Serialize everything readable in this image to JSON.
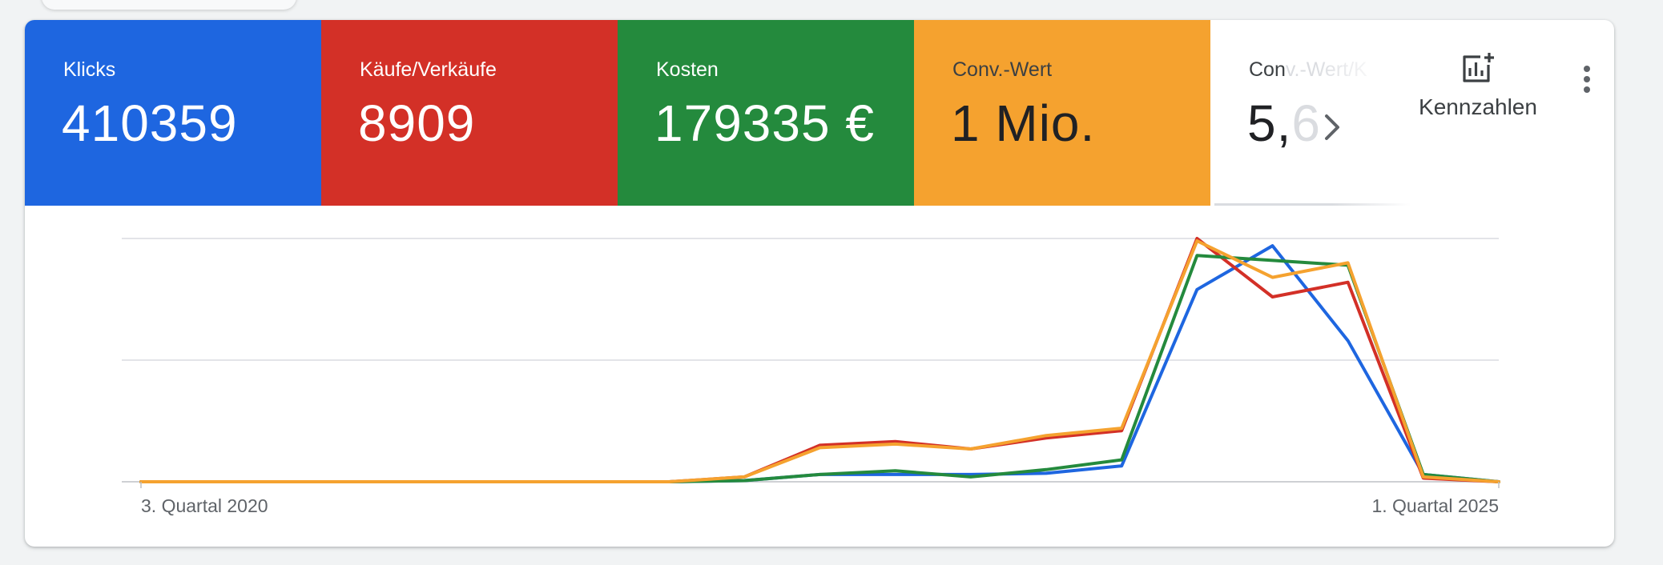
{
  "scorecards": [
    {
      "label": "Klicks",
      "value": "410359",
      "color": "#1e66e0"
    },
    {
      "label": "Käufe/Verkäufe",
      "value": "8909",
      "color": "#d33027"
    },
    {
      "label": "Kosten",
      "value": "179335 €",
      "color": "#248a3d"
    },
    {
      "label": "Conv.-Wert",
      "value": "1 Mio.",
      "color": "#f5a22f"
    },
    {
      "label_visible": "Con",
      "label_faded": "v.-Wert/K",
      "value_visible": "5,",
      "value_faded": "6"
    }
  ],
  "toolbar": {
    "metrics_label": "Kennzahlen",
    "metrics_icon": "add-chart-icon",
    "more_icon": "more-vert-icon",
    "next_icon": "chevron-right-icon"
  },
  "chart_data": {
    "type": "line",
    "x_tick_labels": [
      "3. Quartal 2020",
      "1. Quartal 2025"
    ],
    "x": [
      "2020-Q3",
      "2020-Q4",
      "2021-Q1",
      "2021-Q2",
      "2021-Q3",
      "2021-Q4",
      "2022-Q1",
      "2022-Q2",
      "2022-Q3",
      "2022-Q4",
      "2023-Q1",
      "2023-Q2",
      "2023-Q3",
      "2023-Q4",
      "2024-Q1",
      "2024-Q2",
      "2024-Q3",
      "2024-Q4",
      "2025-Q1"
    ],
    "y_normalized": true,
    "ylim": [
      0,
      1
    ],
    "grid": true,
    "series": [
      {
        "color": "#1e66e0",
        "values": [
          0,
          0,
          0,
          0,
          0,
          0,
          0,
          0,
          0.005,
          0.03,
          0.03,
          0.03,
          0.035,
          0.065,
          0.79,
          0.97,
          0.58,
          0.03,
          0
        ]
      },
      {
        "color": "#d33027",
        "values": [
          0,
          0,
          0,
          0,
          0,
          0,
          0,
          0,
          0.02,
          0.15,
          0.165,
          0.135,
          0.18,
          0.21,
          1.0,
          0.76,
          0.82,
          0.015,
          0
        ]
      },
      {
        "color": "#248a3d",
        "values": [
          0,
          0,
          0,
          0,
          0,
          0,
          0,
          0,
          0.005,
          0.03,
          0.045,
          0.02,
          0.05,
          0.09,
          0.93,
          0.91,
          0.89,
          0.03,
          0
        ]
      },
      {
        "color": "#f5a22f",
        "values": [
          0,
          0,
          0,
          0,
          0,
          0,
          0,
          0,
          0.02,
          0.14,
          0.155,
          0.135,
          0.19,
          0.22,
          0.99,
          0.84,
          0.9,
          0.02,
          0
        ]
      }
    ]
  }
}
